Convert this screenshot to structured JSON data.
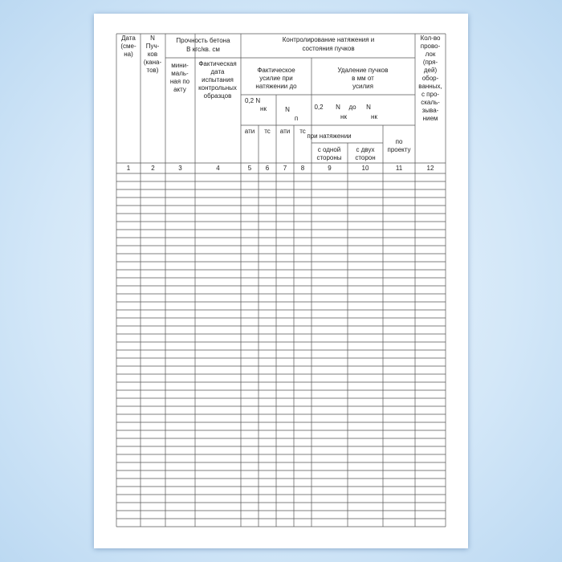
{
  "table": {
    "header": {
      "date": [
        "Дата",
        "(сме-",
        "на)"
      ],
      "bundles": [
        "N",
        "Пуч-",
        "ков",
        "(кана-",
        "тов)"
      ],
      "strength_title": [
        "Прочность  бетона",
        "В  кгс/кв.  см"
      ],
      "strength_minimal": [
        "мини-",
        "маль-",
        "ная по",
        "акту"
      ],
      "strength_actual": [
        "Фактическая",
        "дата",
        "испытания",
        "контрольных",
        "образцов"
      ],
      "control_title": [
        "Контролирование натяжения и",
        "состояния пучков"
      ],
      "force_title": [
        "Фактическое",
        "усилие при",
        "натяжении до"
      ],
      "removal_title": [
        "Удаление пучков",
        "в  мм от",
        "усилия"
      ],
      "force_marks": [
        "0,2   N",
        "нк",
        "N",
        "п"
      ],
      "removal_marks": [
        "0,2",
        "N",
        "до",
        "N",
        "нк",
        "нк"
      ],
      "units": [
        "ати",
        "тс",
        "ати",
        "тс"
      ],
      "during_tension": "при натяжении",
      "one_side": [
        "с одной",
        "стороны"
      ],
      "two_sides": [
        "с двух",
        "сторон"
      ],
      "by_design": [
        "по",
        "проекту"
      ],
      "broken_wires": [
        "Кол-во",
        "прово-",
        "лок",
        "(пря-",
        "дей)",
        "обор-",
        "ванных,",
        "с про-",
        "скаль-",
        "зыва-",
        "нием"
      ]
    },
    "column_numbers": [
      "1",
      "2",
      "3",
      "4",
      "5",
      "6",
      "7",
      "8",
      "9",
      "10",
      "11",
      "12"
    ]
  }
}
